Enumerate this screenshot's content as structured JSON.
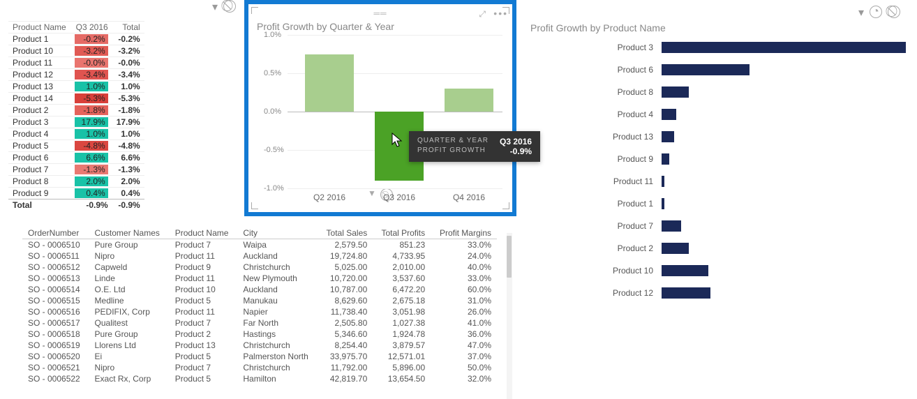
{
  "pin_table": {
    "columns": [
      "Product Name",
      "Q3 2016",
      "Total"
    ],
    "rows": [
      {
        "name": "Product 1",
        "q3": "-0.2%",
        "total": "-0.2%",
        "bg": "#e56b66"
      },
      {
        "name": "Product 10",
        "q3": "-3.2%",
        "total": "-3.2%",
        "bg": "#e05a54"
      },
      {
        "name": "Product 11",
        "q3": "-0.0%",
        "total": "-0.0%",
        "bg": "#e9746e"
      },
      {
        "name": "Product 12",
        "q3": "-3.4%",
        "total": "-3.4%",
        "bg": "#e05450"
      },
      {
        "name": "Product 13",
        "q3": "1.0%",
        "total": "1.0%",
        "bg": "#19c2a7"
      },
      {
        "name": "Product 14",
        "q3": "-5.3%",
        "total": "-5.3%",
        "bg": "#d8403a"
      },
      {
        "name": "Product 2",
        "q3": "-1.8%",
        "total": "-1.8%",
        "bg": "#e4625b"
      },
      {
        "name": "Product 3",
        "q3": "17.9%",
        "total": "17.9%",
        "bg": "#19c2a7"
      },
      {
        "name": "Product 4",
        "q3": "1.0%",
        "total": "1.0%",
        "bg": "#19c2a7"
      },
      {
        "name": "Product 5",
        "q3": "-4.8%",
        "total": "-4.8%",
        "bg": "#da4740"
      },
      {
        "name": "Product 6",
        "q3": "6.6%",
        "total": "6.6%",
        "bg": "#19c2a7"
      },
      {
        "name": "Product 7",
        "q3": "-1.3%",
        "total": "-1.3%",
        "bg": "#e97972"
      },
      {
        "name": "Product 8",
        "q3": "2.0%",
        "total": "2.0%",
        "bg": "#19c2a7"
      },
      {
        "name": "Product 9",
        "q3": "0.4%",
        "total": "0.4%",
        "bg": "#19c2a7"
      }
    ],
    "total_row": {
      "name": "Total",
      "q3": "-0.9%",
      "total": "-0.9%"
    }
  },
  "center_chart": {
    "title": "Profit Growth by Quarter & Year",
    "type": "bar",
    "ylim": [
      -1.0,
      1.0
    ],
    "yticks": [
      "1.0%",
      "0.5%",
      "0.0%",
      "-0.5%",
      "-1.0%"
    ],
    "categories": [
      "Q2 2016",
      "Q3 2016",
      "Q4 2016"
    ],
    "values": [
      0.75,
      -0.9,
      0.3
    ],
    "bar_colors": [
      "#a8ce8e",
      "#4ba226",
      "#a8ce8e"
    ],
    "background": "#ffffff",
    "grid_color": "#eeeeee",
    "axis_color": "#bbbbbb",
    "tooltip": {
      "key1": "QUARTER & YEAR",
      "val1": "Q3 2016",
      "key2": "PROFIT GROWTH",
      "val2": "-0.9%"
    }
  },
  "right_chart": {
    "title": "Profit Growth by Product Name",
    "type": "bar-horizontal",
    "bar_color": "#1b2958",
    "items": [
      {
        "label": "Product 3",
        "value": 100
      },
      {
        "label": "Product 6",
        "value": 36
      },
      {
        "label": "Product 8",
        "value": 11
      },
      {
        "label": "Product 4",
        "value": 6
      },
      {
        "label": "Product 13",
        "value": 5
      },
      {
        "label": "Product 9",
        "value": 3
      },
      {
        "label": "Product 11",
        "value": 1
      },
      {
        "label": "Product 1",
        "value": 1
      },
      {
        "label": "Product 7",
        "value": 8
      },
      {
        "label": "Product 2",
        "value": 11
      },
      {
        "label": "Product 10",
        "value": 19
      },
      {
        "label": "Product 12",
        "value": 20
      }
    ]
  },
  "data_table": {
    "columns": [
      "OrderNumber",
      "Customer Names",
      "Product Name",
      "City",
      "Total Sales",
      "Total Profits",
      "Profit Margins"
    ],
    "rows": [
      [
        "SO - 0006510",
        "Pure Group",
        "Product 7",
        "Waipa",
        "2,579.50",
        "851.23",
        "33.0%"
      ],
      [
        "SO - 0006511",
        "Nipro",
        "Product 11",
        "Auckland",
        "19,724.80",
        "4,733.95",
        "24.0%"
      ],
      [
        "SO - 0006512",
        "Capweld",
        "Product 9",
        "Christchurch",
        "5,025.00",
        "2,010.00",
        "40.0%"
      ],
      [
        "SO - 0006513",
        "Linde",
        "Product 11",
        "New Plymouth",
        "10,720.00",
        "3,537.60",
        "33.0%"
      ],
      [
        "SO - 0006514",
        "O.E. Ltd",
        "Product 10",
        "Auckland",
        "10,787.00",
        "6,472.20",
        "60.0%"
      ],
      [
        "SO - 0006515",
        "Medline",
        "Product 5",
        "Manukau",
        "8,629.60",
        "2,675.18",
        "31.0%"
      ],
      [
        "SO - 0006516",
        "PEDIFIX, Corp",
        "Product 11",
        "Napier",
        "11,738.40",
        "3,051.98",
        "26.0%"
      ],
      [
        "SO - 0006517",
        "Qualitest",
        "Product 7",
        "Far North",
        "2,505.80",
        "1,027.38",
        "41.0%"
      ],
      [
        "SO - 0006518",
        "Pure Group",
        "Product 2",
        "Hastings",
        "5,346.60",
        "1,924.78",
        "36.0%"
      ],
      [
        "SO - 0006519",
        "Llorens Ltd",
        "Product 13",
        "Christchurch",
        "8,254.40",
        "3,879.57",
        "47.0%"
      ],
      [
        "SO - 0006520",
        "Ei",
        "Product 5",
        "Palmerston North",
        "33,975.70",
        "12,571.01",
        "37.0%"
      ],
      [
        "SO - 0006521",
        "Nipro",
        "Product 7",
        "Christchurch",
        "11,792.00",
        "5,896.00",
        "50.0%"
      ],
      [
        "SO - 0006522",
        "Exact Rx, Corp",
        "Product 5",
        "Hamilton",
        "42,819.70",
        "13,654.50",
        "32.0%"
      ]
    ]
  }
}
